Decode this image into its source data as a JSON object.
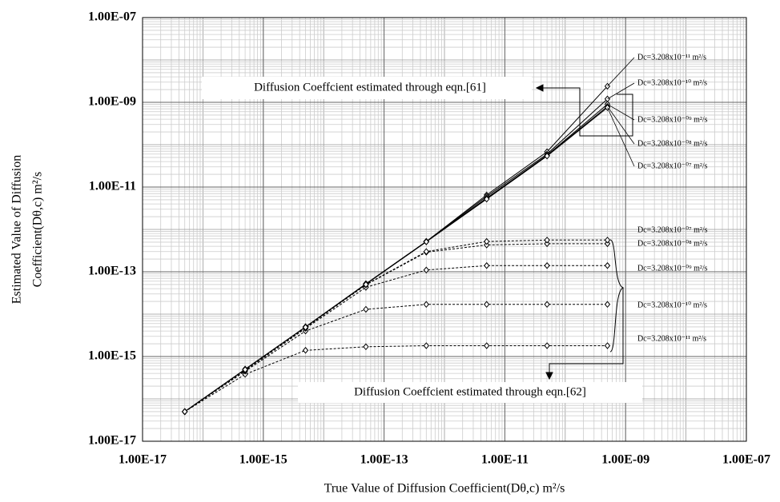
{
  "chart_data": {
    "type": "line",
    "xlabel": "True Value of Diffusion Coefficient(Dθ,c) m²/s",
    "ylabel": [
      "Estimated Value of Diffusion",
      "Coefficient(Dθ,c) m²/s"
    ],
    "annotations": [
      "Diffusion Coeffcient estimated through eqn.[61]",
      "Diffusion Coeffcient estimated through eqn.[62]"
    ],
    "log_x": true,
    "log_y": true,
    "grid": true,
    "minor_grid": true,
    "xlim": [
      1e-17,
      1e-07
    ],
    "ylim": [
      1e-17,
      1e-07
    ],
    "xticks": [
      {
        "value": 1e-17,
        "label": "1.00E-17"
      },
      {
        "value": 1e-15,
        "label": "1.00E-15"
      },
      {
        "value": 1e-13,
        "label": "1.00E-13"
      },
      {
        "value": 1e-11,
        "label": "1.00E-11"
      },
      {
        "value": 1e-09,
        "label": "1.00E-09"
      },
      {
        "value": 1e-07,
        "label": "1.00E-07"
      }
    ],
    "yticks": [
      {
        "value": 1e-17,
        "label": "1.00E-17"
      },
      {
        "value": 1e-15,
        "label": "1.00E-15"
      },
      {
        "value": 1e-13,
        "label": "1.00E-13"
      },
      {
        "value": 1e-11,
        "label": "1.00E-11"
      },
      {
        "value": 1e-09,
        "label": "1.00E-09"
      },
      {
        "value": 1e-07,
        "label": "1.00E-07"
      }
    ],
    "x": [
      5e-17,
      5e-16,
      5e-15,
      5e-14,
      5e-13,
      5e-12,
      5e-11,
      5e-10
    ],
    "series": [
      {
        "name": "Dc=3.208x10⁻¹¹ m²/s",
        "color": "#000000",
        "linestyle": "solid",
        "values": [
          5e-17,
          5e-16,
          5e-15,
          5.2e-14,
          5.2e-13,
          6.5e-12,
          6.8e-11,
          2.4e-09
        ]
      },
      {
        "name": "Dc=3.208x10⁻¹⁰ m²/s",
        "color": "#000000",
        "linestyle": "solid",
        "values": [
          5e-17,
          5e-16,
          5e-15,
          5.2e-14,
          5.2e-13,
          6e-12,
          6e-11,
          1.2e-09
        ]
      },
      {
        "name": "Dc=3.208x10⁻⁰⁹ m²/s",
        "color": "#000000",
        "linestyle": "solid",
        "values": [
          5e-17,
          5e-16,
          5e-15,
          5.2e-14,
          5.2e-13,
          5.5e-12,
          5.6e-11,
          9e-10
        ]
      },
      {
        "name": "Dc=3.208x10⁻⁰⁸ m²/s",
        "color": "#000000",
        "linestyle": "solid",
        "values": [
          5e-17,
          5e-16,
          5e-15,
          5.1e-14,
          5.1e-13,
          5.3e-12,
          5.5e-11,
          8e-10
        ]
      },
      {
        "name": "Dc=3.208x10⁻⁰⁷ m²/s",
        "color": "#000000",
        "linestyle": "solid",
        "values": [
          5e-17,
          5e-16,
          5e-15,
          5.1e-14,
          5.1e-13,
          5.2e-12,
          5.4e-11,
          7.5e-10
        ]
      },
      {
        "name": "Dc=3.208x10⁻¹¹ m²/s",
        "color": "#000000",
        "linestyle": "dashed",
        "values": [
          5e-17,
          3.8e-16,
          1.4e-15,
          1.7e-15,
          1.8e-15,
          1.8e-15,
          1.8e-15,
          1.8e-15
        ]
      },
      {
        "name": "Dc=3.208x10⁻¹⁰ m²/s",
        "color": "#000000",
        "linestyle": "dashed",
        "values": [
          5e-17,
          4.5e-16,
          4e-15,
          1.3e-14,
          1.7e-14,
          1.7e-14,
          1.7e-14,
          1.7e-14
        ]
      },
      {
        "name": "Dc=3.208x10⁻⁰⁹ m²/s",
        "color": "#000000",
        "linestyle": "dashed",
        "values": [
          5e-17,
          4.7e-16,
          4.6e-15,
          4.3e-14,
          1.1e-13,
          1.4e-13,
          1.4e-13,
          1.4e-13
        ]
      },
      {
        "name": "Dc=3.208x10⁻⁰⁸ m²/s",
        "color": "#000000",
        "linestyle": "dashed",
        "values": [
          5e-17,
          4.8e-16,
          4.8e-15,
          4.9e-14,
          2.9e-13,
          4.3e-13,
          4.6e-13,
          4.6e-13
        ]
      },
      {
        "name": "Dc=3.208x10⁻⁰⁷ m²/s",
        "color": "#000000",
        "linestyle": "dashed",
        "values": [
          5e-17,
          4.9e-16,
          4.9e-15,
          5e-14,
          3e-13,
          5.2e-13,
          5.6e-13,
          5.6e-13
        ]
      }
    ]
  }
}
